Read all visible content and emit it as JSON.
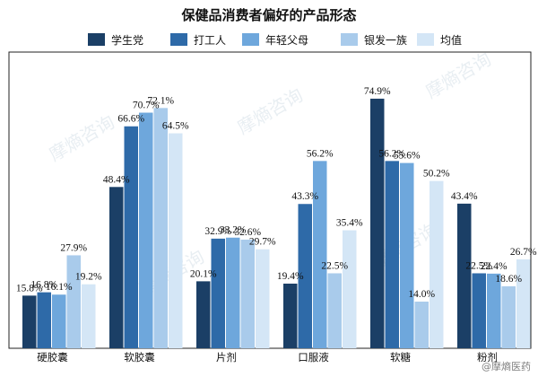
{
  "chart_data": {
    "type": "bar",
    "title": "保健品消费者偏好的产品形态",
    "categories": [
      "硬胶囊",
      "软胶囊",
      "片剂",
      "口服液",
      "软糖",
      "粉剂"
    ],
    "series": [
      {
        "name": "学生党",
        "color": "#1b3f66",
        "values": [
          15.8,
          48.4,
          20.1,
          19.4,
          74.9,
          43.4
        ]
      },
      {
        "name": "打工人",
        "color": "#2e6aa8",
        "values": [
          16.8,
          66.6,
          32.9,
          43.3,
          56.2,
          22.5
        ]
      },
      {
        "name": "年轻父母",
        "color": "#6ea7dc",
        "values": [
          16.1,
          70.7,
          33.2,
          56.2,
          55.6,
          22.4
        ]
      },
      {
        "name": "银发一族",
        "color": "#a9cbeb",
        "values": [
          27.9,
          72.1,
          32.6,
          22.5,
          14.0,
          18.6
        ]
      },
      {
        "name": "均值",
        "color": "#d4e6f6",
        "values": [
          19.2,
          64.5,
          29.7,
          35.4,
          50.2,
          26.7
        ]
      }
    ],
    "ylim": [
      0,
      85
    ],
    "grid": false,
    "legend_position": "top",
    "value_suffix": "%"
  },
  "watermark": {
    "brand": "摩熵咨询",
    "corner": "@摩熵医药"
  }
}
